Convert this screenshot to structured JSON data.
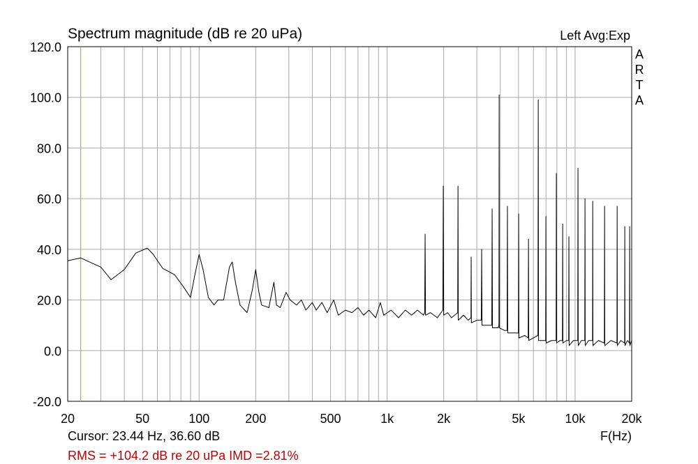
{
  "chart_data": {
    "type": "line",
    "title": "Spectrum magnitude (dB re 20 uPa)",
    "status": "Left  Avg:Exp",
    "watermark": "ARTA",
    "xlabel": "F(Hz)",
    "log_x": true,
    "grid": true,
    "xlim": [
      20,
      20000
    ],
    "ylim": [
      -20,
      120
    ],
    "xticks": [
      20,
      50,
      100,
      200,
      500,
      {
        "value": 1000,
        "label": "1k"
      },
      {
        "value": 2000,
        "label": "2k"
      },
      {
        "value": 5000,
        "label": "5k"
      },
      {
        "value": 10000,
        "label": "10k"
      },
      {
        "value": 20000,
        "label": "20k"
      }
    ],
    "xminor": [
      30,
      40,
      60,
      70,
      80,
      90,
      300,
      400,
      600,
      700,
      800,
      900,
      3000,
      4000,
      6000,
      7000,
      8000,
      9000
    ],
    "yticks": [
      {
        "value": -20,
        "label": "-20.0"
      },
      {
        "value": 0,
        "label": "0.0"
      },
      {
        "value": 20,
        "label": "20.0"
      },
      {
        "value": 40,
        "label": "40.0"
      },
      {
        "value": 60,
        "label": "60.0"
      },
      {
        "value": 80,
        "label": "80.0"
      },
      {
        "value": 100,
        "label": "100.0"
      },
      {
        "value": 120,
        "label": "120.0"
      }
    ],
    "cursor": {
      "x": 23.44,
      "color": "#c8b400",
      "label": "Cursor: 23.44 Hz, 36.60 dB"
    },
    "summary": {
      "label": "RMS = +104.2 dB re 20 uPa  IMD =2.81%",
      "color": "#c00000"
    },
    "color": "#000000",
    "x": [
      20,
      23.44,
      27,
      30,
      34,
      40,
      46,
      53,
      57,
      64,
      74,
      82,
      90,
      95,
      100,
      105,
      112,
      120,
      126,
      135,
      145,
      150,
      156,
      165,
      180,
      192,
      200,
      208,
      215,
      235,
      250,
      258,
      270,
      290,
      305,
      330,
      350,
      370,
      400,
      420,
      450,
      480,
      520,
      550,
      600,
      650,
      700,
      750,
      800,
      870,
      920,
      960,
      1050,
      1150,
      1250,
      1350,
      1450,
      1560,
      1585,
      1593,
      1601,
      1700,
      1850,
      1980,
      1990,
      2000,
      2100,
      2200,
      2375,
      2383,
      2391,
      2550,
      2700,
      2793,
      2800,
      2807,
      3000,
      3170,
      3184,
      3198,
      3400,
      3605,
      3620,
      3635,
      3900,
      3935,
      3945,
      3955,
      4200,
      4350,
      4366,
      4382,
      4700,
      4995,
      5010,
      5025,
      5400,
      5630,
      5650,
      5670,
      6000,
      6345,
      6368,
      6390,
      6700,
      6975,
      6995,
      7015,
      7500,
      7925,
      7950,
      7975,
      8300,
      8565,
      8590,
      8615,
      9000,
      9245,
      9270,
      9295,
      9800,
      10330,
      10360,
      10390,
      10800,
      11260,
      11290,
      11320,
      11800,
      12380,
      12410,
      12440,
      13300,
      14310,
      14350,
      14390,
      15500,
      16700,
      16740,
      16780,
      17500,
      18340,
      18380,
      18420,
      19000,
      19470,
      19510,
      19550,
      20000
    ],
    "values": [
      35.5,
      36.6,
      34.5,
      33,
      28,
      32,
      38.5,
      40.5,
      38,
      32.5,
      30,
      25.5,
      21,
      30,
      38,
      32,
      21,
      18,
      20,
      20,
      33,
      35,
      27,
      18,
      15,
      24,
      32,
      23,
      18,
      17,
      27,
      18,
      17,
      23,
      20,
      18,
      20,
      16,
      19,
      16,
      19,
      15,
      20,
      14,
      16,
      15,
      17,
      14,
      16,
      13,
      19,
      14,
      16,
      13,
      16,
      14,
      16,
      14,
      15,
      46,
      14,
      15,
      13,
      16,
      65,
      14,
      15,
      13,
      15,
      65,
      12,
      14,
      12,
      13,
      37,
      11,
      12,
      12,
      40,
      10,
      10,
      10,
      56,
      9,
      9,
      10,
      101,
      9,
      8,
      8,
      57,
      7,
      7,
      7,
      54,
      5,
      6,
      5,
      44,
      4,
      5,
      6,
      99,
      4,
      4,
      4,
      53,
      3,
      4,
      4,
      70,
      3,
      4,
      4,
      50,
      3,
      4,
      4,
      45,
      2,
      4,
      4,
      72,
      2,
      4,
      4,
      60,
      2,
      4,
      4,
      59,
      2,
      4,
      3,
      57,
      2,
      4,
      3,
      57,
      2,
      4,
      3,
      49,
      2,
      4,
      3,
      49,
      2,
      4
    ]
  }
}
